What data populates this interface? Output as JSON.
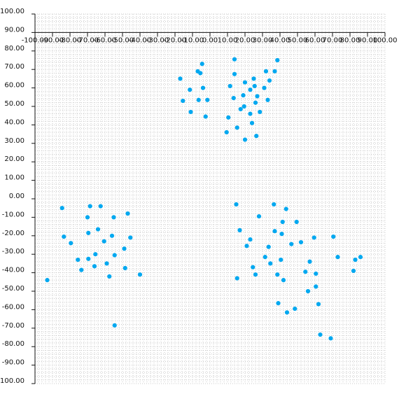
{
  "chart_data": {
    "type": "scatter",
    "title": "",
    "xlabel": "",
    "ylabel": "",
    "xlim": [
      -100,
      100
    ],
    "ylim": [
      -100,
      100
    ],
    "x_ticks": [
      -100,
      -90,
      -80,
      -70,
      -60,
      -50,
      -40,
      -30,
      -20,
      -10,
      0,
      10,
      20,
      30,
      40,
      50,
      60,
      70,
      80,
      90,
      100
    ],
    "y_ticks": [
      100,
      90,
      80,
      70,
      60,
      50,
      40,
      30,
      20,
      10,
      0,
      -10,
      -20,
      -30,
      -40,
      -50,
      -60,
      -70,
      -80,
      -90,
      -100
    ],
    "x_tick_labels": [
      "-100.00",
      "-90.00",
      "-80.00",
      "-70.00",
      "-60.00",
      "-50.00",
      "-40.00",
      "-30.00",
      "-20.00",
      "-10.00",
      "0.00",
      "10.00",
      "20.00",
      "30.00",
      "40.00",
      "50.00",
      "60.00",
      "70.00",
      "80.00",
      "90.00",
      "100.00"
    ],
    "y_tick_labels": [
      "100.00",
      "90.00",
      "80.00",
      "70.00",
      "60.00",
      "50.00",
      "40.00",
      "30.00",
      "20.00",
      "10.00",
      "0.00",
      "-10.00",
      "-20.00",
      "-30.00",
      "-40.00",
      "-50.00",
      "-60.00",
      "-70.00",
      "-80.00",
      "-90.00",
      "-100.00"
    ],
    "grid": true,
    "point_color": "#00a8f0",
    "series": [
      {
        "x": [
          -17.0,
          -15.5,
          -11.5,
          -11.0,
          -6.5,
          -5.5,
          -4.5,
          -4.0,
          -2.5,
          -1.5,
          9.5,
          10.5,
          11.5,
          13.5,
          14.0,
          15.5,
          17.5,
          19.0,
          20.0,
          23.0,
          23.0,
          24.0,
          25.0,
          26.0,
          26.5,
          28.5,
          31.0,
          32.0,
          33.0,
          34.0,
          37.0,
          38.5,
          20.0,
          -7.0,
          14.0,
          19.5,
          25.5,
          27.0
        ],
        "y": [
          65.0,
          53.0,
          59.0,
          47.0,
          53.5,
          68.0,
          73.0,
          60.0,
          44.5,
          53.5,
          36.0,
          44.0,
          61.0,
          54.5,
          67.5,
          38.5,
          48.5,
          56.0,
          63.0,
          59.0,
          46.0,
          41.0,
          65.0,
          52.0,
          34.0,
          47.0,
          60.0,
          69.0,
          53.5,
          64.0,
          69.0,
          75.0,
          32.0,
          69.0,
          75.5,
          50.0,
          61.0,
          55.5
        ]
      },
      {
        "x": [
          -93.0,
          -84.5,
          -83.5,
          -79.5,
          -75.5,
          -73.5,
          -70.0,
          -69.5,
          -69.5,
          -66.0,
          -65.5,
          -64.0,
          -62.5,
          -60.5,
          -59.0,
          -57.5,
          -56.0,
          -55.0,
          -54.5,
          -49.0,
          -48.5,
          -47.0,
          -45.5,
          -40.0,
          -68.5,
          -54.5
        ],
        "y": [
          -44.0,
          -5.0,
          -20.5,
          -24.0,
          -33.0,
          -38.5,
          -10.0,
          -18.5,
          -32.5,
          -36.5,
          -30.0,
          -16.5,
          -4.0,
          -23.0,
          -35.0,
          -42.0,
          -20.0,
          -10.0,
          -30.5,
          -27.0,
          -37.5,
          -8.0,
          -21.0,
          -41.0,
          -4.0,
          -68.5
        ]
      },
      {
        "x": [
          15.0,
          15.5,
          17.0,
          21.0,
          23.0,
          24.5,
          26.0,
          28.0,
          31.5,
          33.5,
          34.5,
          36.5,
          37.0,
          38.5,
          39.0,
          40.5,
          41.0,
          41.5,
          42.0,
          43.5,
          44.0,
          46.5,
          48.5,
          49.5,
          52.0,
          54.5,
          56.0,
          57.0,
          59.5,
          60.5,
          60.5,
          62.0,
          63.0,
          69.0,
          70.5,
          73.0,
          82.0,
          83.0,
          86.0
        ],
        "y": [
          -3.0,
          -43.0,
          -17.0,
          -25.5,
          -22.0,
          -37.0,
          -41.0,
          -9.5,
          -31.5,
          -26.0,
          -35.0,
          -3.0,
          -17.5,
          -41.0,
          -56.5,
          -33.0,
          -19.0,
          -12.5,
          -44.0,
          -5.5,
          -61.5,
          -24.5,
          -59.5,
          -12.5,
          -23.5,
          -39.5,
          -50.0,
          -34.0,
          -21.0,
          -40.5,
          -47.5,
          -57.0,
          -73.5,
          -75.5,
          -20.5,
          -31.5,
          -39.0,
          -33.0,
          -31.5
        ]
      }
    ]
  }
}
